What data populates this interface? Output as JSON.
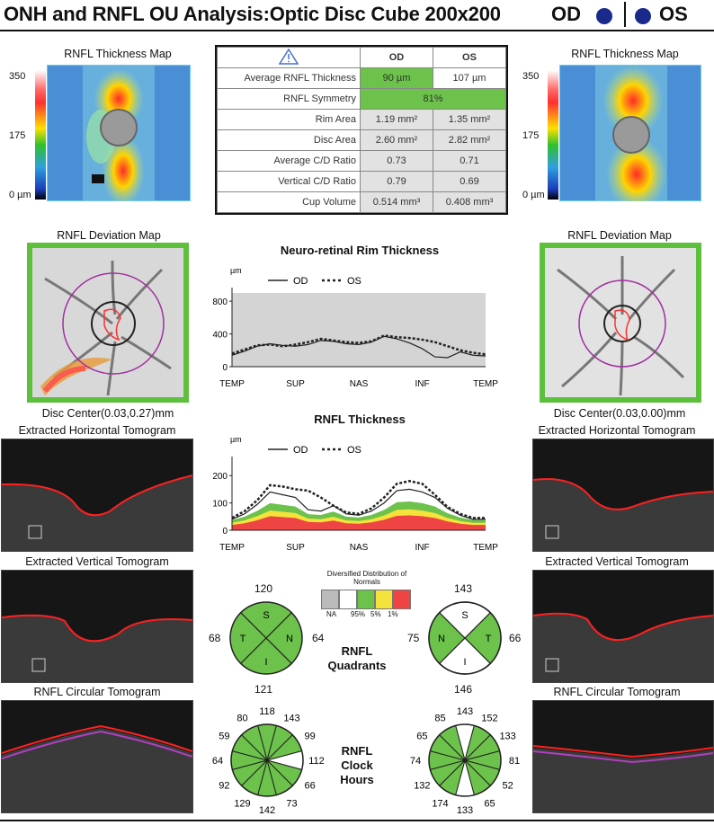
{
  "header": {
    "title": "ONH and RNFL OU Analysis:Optic Disc Cube 200x200",
    "od": "OD",
    "os": "OS"
  },
  "thickness_map": {
    "title_left": "RNFL Thickness Map",
    "title_right": "RNFL Thickness Map",
    "scale_top": "350",
    "scale_mid": "175",
    "scale_bottom": "0 µm"
  },
  "table": {
    "col_od": "OD",
    "col_os": "OS",
    "rows": [
      {
        "label": "Average RNFL Thickness",
        "od": "90 µm",
        "os": "107 µm"
      },
      {
        "label": "RNFL Symmetry",
        "value": "81%"
      },
      {
        "label": "Rim Area",
        "od": "1.19 mm²",
        "os": "1.35 mm²"
      },
      {
        "label": "Disc Area",
        "od": "2.60 mm²",
        "os": "2.82 mm²"
      },
      {
        "label": "Average C/D Ratio",
        "od": "0.73",
        "os": "0.71"
      },
      {
        "label": "Vertical C/D Ratio",
        "od": "0.79",
        "os": "0.69"
      },
      {
        "label": "Cup Volume",
        "od": "0.514 mm³",
        "os": "0.408 mm³"
      }
    ]
  },
  "deviation": {
    "title_left": "RNFL Deviation Map",
    "title_right": "RNFL Deviation Map",
    "center_left": "Disc Center(0.03,0.27)mm",
    "center_right": "Disc Center(0.03,0.00)mm"
  },
  "tomograms": {
    "horizontal": "Extracted Horizontal Tomogram",
    "vertical": "Extracted Vertical Tomogram",
    "circular": "RNFL Circular Tomogram"
  },
  "legend_title": "Diversified Distribution of Normals",
  "legend_labels": [
    "NA",
    "95%",
    "5%",
    "1%"
  ],
  "quadrants_label": "RNFL Quadrants",
  "clock_label": "RNFL Clock Hours",
  "quadrants": {
    "od": {
      "top": "120",
      "left": "68",
      "right": "64",
      "bottom": "121",
      "S": "S",
      "N": "N",
      "I": "I",
      "T": "T"
    },
    "os": {
      "top": "143",
      "left": "75",
      "right": "66",
      "bottom": "146",
      "S": "S",
      "N": "N",
      "I": "I",
      "T": "T"
    }
  },
  "clock": {
    "od": [
      "118",
      "143",
      "99",
      "112",
      "66",
      "73",
      "142",
      "129",
      "92",
      "64",
      "59",
      "80"
    ],
    "os": [
      "143",
      "152",
      "133",
      "81",
      "52",
      "65",
      "133",
      "174",
      "132",
      "74",
      "65",
      "85"
    ]
  },
  "colors": {
    "green": "#6cc24a",
    "yellow": "#f5e33b",
    "red": "#ee4444",
    "legend_na": "#bbbbbb",
    "od_blue": "#1a2a8a"
  },
  "chart_data": [
    {
      "type": "line",
      "title": "Neuro-retinal Rim Thickness",
      "ylabel": "µm",
      "ylim": [
        0,
        900
      ],
      "yticks": [
        "0",
        "400",
        "800"
      ],
      "xticks": [
        "TEMP",
        "SUP",
        "NAS",
        "INF",
        "TEMP"
      ],
      "legend": [
        "OD",
        "OS"
      ],
      "series": [
        {
          "name": "OD",
          "values": [
            140,
            190,
            250,
            280,
            260,
            250,
            270,
            320,
            310,
            280,
            270,
            300,
            370,
            340,
            290,
            220,
            120,
            110,
            180,
            140,
            130
          ]
        },
        {
          "name": "OS",
          "values": [
            160,
            210,
            260,
            270,
            250,
            270,
            300,
            340,
            320,
            300,
            290,
            310,
            380,
            360,
            350,
            330,
            300,
            250,
            200,
            170,
            150
          ]
        }
      ]
    },
    {
      "type": "line",
      "title": "RNFL Thickness",
      "ylabel": "µm",
      "ylim": [
        0,
        250
      ],
      "yticks": [
        "0",
        "100",
        "200"
      ],
      "xticks": [
        "TEMP",
        "SUP",
        "NAS",
        "INF",
        "TEMP"
      ],
      "legend": [
        "OD",
        "OS"
      ],
      "series": [
        {
          "name": "OD",
          "values": [
            40,
            60,
            95,
            140,
            130,
            120,
            75,
            70,
            90,
            60,
            55,
            70,
            100,
            145,
            150,
            140,
            120,
            80,
            55,
            40,
            40
          ]
        },
        {
          "name": "OS",
          "values": [
            45,
            70,
            110,
            165,
            160,
            150,
            145,
            120,
            90,
            65,
            60,
            80,
            120,
            170,
            180,
            170,
            130,
            85,
            60,
            45,
            45
          ]
        }
      ]
    }
  ]
}
